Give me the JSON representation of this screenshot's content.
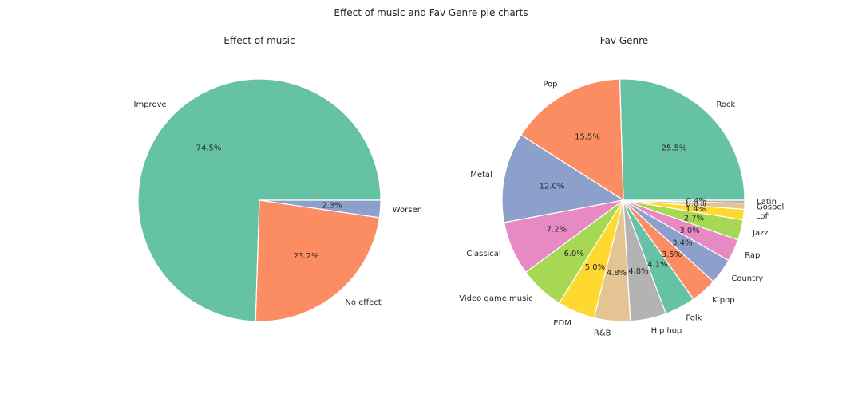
{
  "figure": {
    "title": "Effect of music and Fav Genre pie charts"
  },
  "chart_data": [
    {
      "type": "pie",
      "title": "Effect of music",
      "labels": [
        "Improve",
        "No effect",
        "Worsen"
      ],
      "values": [
        74.5,
        23.2,
        2.3
      ],
      "pct_labels": [
        "74.5%",
        "23.2%",
        "2.3%"
      ],
      "colors": [
        "#66c2a5",
        "#fc8d62",
        "#8da0cb"
      ]
    },
    {
      "type": "pie",
      "title": "Fav Genre",
      "labels": [
        "Rock",
        "Pop",
        "Metal",
        "Classical",
        "Video game music",
        "EDM",
        "R&B",
        "Hip hop",
        "Folk",
        "K pop",
        "Country",
        "Rap",
        "Jazz",
        "Lofi",
        "Gospel",
        "Latin"
      ],
      "values": [
        25.5,
        15.5,
        12.0,
        7.2,
        6.0,
        5.0,
        4.8,
        4.8,
        4.1,
        3.5,
        3.4,
        3.0,
        2.7,
        1.4,
        0.8,
        0.4
      ],
      "pct_labels": [
        "25.5%",
        "15.5%",
        "12.0%",
        "7.2%",
        "6.0%",
        "5.0%",
        "4.8%",
        "4.8%",
        "4.1%",
        "3.5%",
        "3.4%",
        "3.0%",
        "2.7%",
        "1.4%",
        "0.8%",
        "0.4%"
      ],
      "colors": [
        "#66c2a5",
        "#fc8d62",
        "#8da0cb",
        "#e78ac3",
        "#a6d854",
        "#ffd92f",
        "#e5c494",
        "#b3b3b3",
        "#66c2a5",
        "#fc8d62",
        "#8da0cb",
        "#e78ac3",
        "#a6d854",
        "#ffd92f",
        "#e5c494",
        "#b3b3b3"
      ]
    }
  ]
}
